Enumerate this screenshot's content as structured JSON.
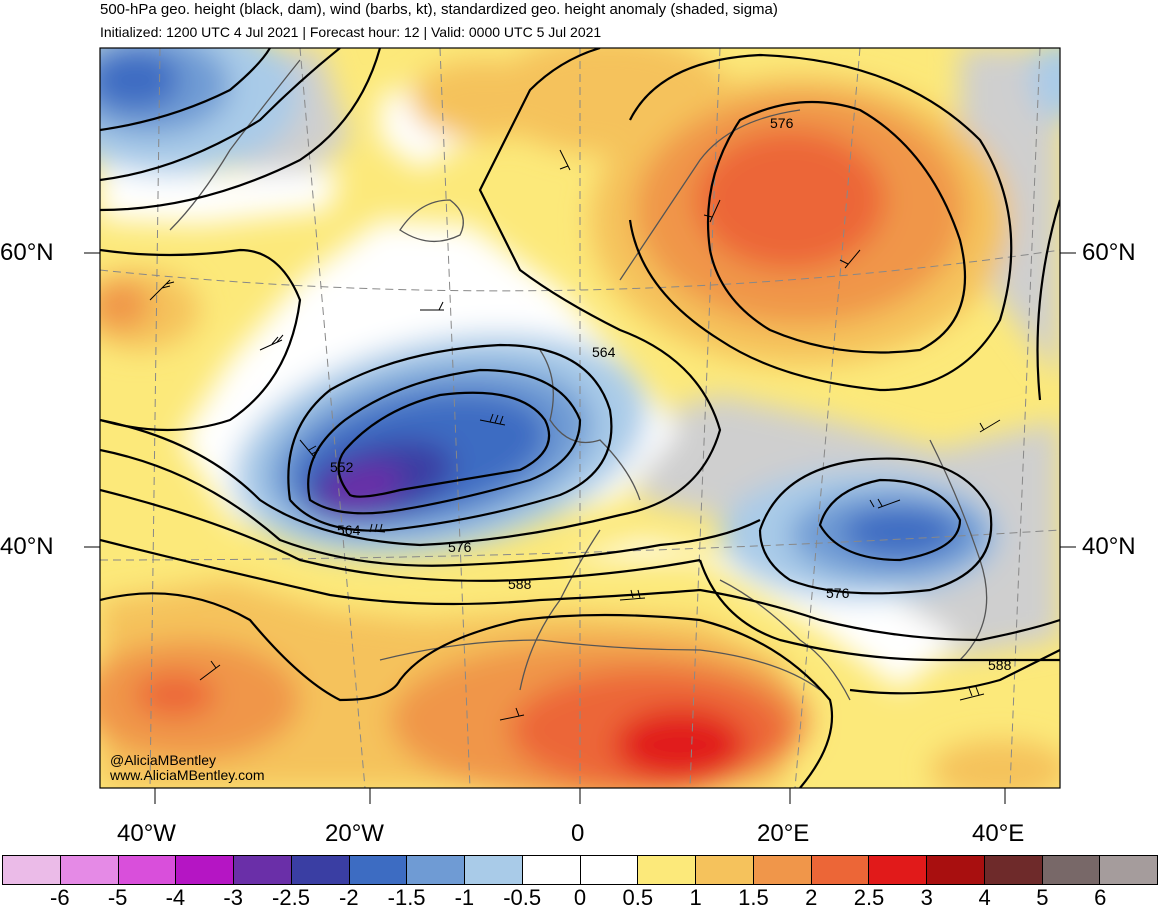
{
  "header": {
    "title": "500-hPa geo. height (black, dam), wind (barbs, kt), standardized geo. height anomaly (shaded, sigma)",
    "subtitle": "Initialized: 1200 UTC 4 Jul 2021 | Forecast hour: 12 | Valid: 0000 UTC 5 Jul 2021"
  },
  "map": {
    "lat_labels": [
      "60°N",
      "40°N"
    ],
    "lon_labels": [
      "40°W",
      "20°W",
      "0",
      "20°E",
      "40°E"
    ],
    "contour_labels": [
      "552",
      "564",
      "576",
      "588",
      "564",
      "576",
      "576",
      "588"
    ],
    "credit": [
      "@AliciaMBentley",
      "www.AliciaMBentley.com"
    ]
  },
  "colorbar": {
    "colors": [
      "#ebbbe8",
      "#e58ae6",
      "#d94fdb",
      "#b515c4",
      "#6a2fa8",
      "#3a3ea3",
      "#3d6cc2",
      "#6f9bd4",
      "#a9cbe8",
      "#ffffff",
      "#ffffff",
      "#fce97a",
      "#f5c25c",
      "#f0964a",
      "#ec6637",
      "#e11a1a",
      "#a80f0f",
      "#6e2a2a",
      "#786868",
      "#a59c9c"
    ],
    "labels": [
      "-6",
      "-5",
      "-4",
      "-3",
      "-2.5",
      "-2",
      "-1.5",
      "-1",
      "-0.5",
      "0",
      "0.5",
      "1",
      "1.5",
      "2",
      "2.5",
      "3",
      "4",
      "5",
      "6"
    ]
  }
}
